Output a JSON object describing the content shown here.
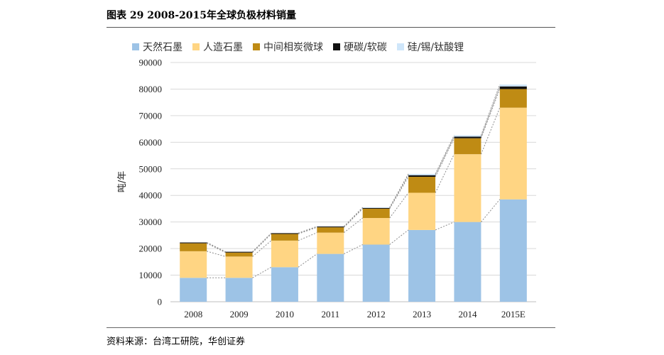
{
  "header": {
    "title": "图表 29  2008-2015年全球负极材料销量"
  },
  "footer": {
    "source": "资料来源：台湾工研院，华创证券"
  },
  "chart_data": {
    "type": "bar",
    "stacked": true,
    "categories": [
      "2008",
      "2009",
      "2010",
      "2011",
      "2012",
      "2013",
      "2014",
      "2015E"
    ],
    "series": [
      {
        "name": "天然石墨",
        "color": "#9DC3E6",
        "values": [
          9000,
          9000,
          13000,
          18000,
          21500,
          27000,
          30000,
          38500
        ]
      },
      {
        "name": "人造石墨",
        "color": "#FFD583",
        "values": [
          10000,
          8000,
          10000,
          8000,
          10000,
          14000,
          25500,
          34500
        ]
      },
      {
        "name": "中间相炭微球",
        "color": "#BF8B14",
        "values": [
          3000,
          1500,
          2500,
          2000,
          3500,
          6000,
          6000,
          7000
        ]
      },
      {
        "name": "硬碳/软碳",
        "color": "#111111",
        "values": [
          300,
          300,
          300,
          300,
          300,
          600,
          600,
          1000
        ]
      },
      {
        "name": "硅/锡/钛酸锂",
        "color": "#CFE6FA",
        "values": [
          0,
          0,
          0,
          0,
          200,
          500,
          500,
          700
        ]
      }
    ],
    "ylabel": "吨/年",
    "ylim": [
      0,
      90000
    ],
    "yticks": [
      0,
      10000,
      20000,
      30000,
      40000,
      50000,
      60000,
      70000,
      80000,
      90000
    ],
    "legend_position": "top",
    "grid": true,
    "connector_lines": true
  }
}
